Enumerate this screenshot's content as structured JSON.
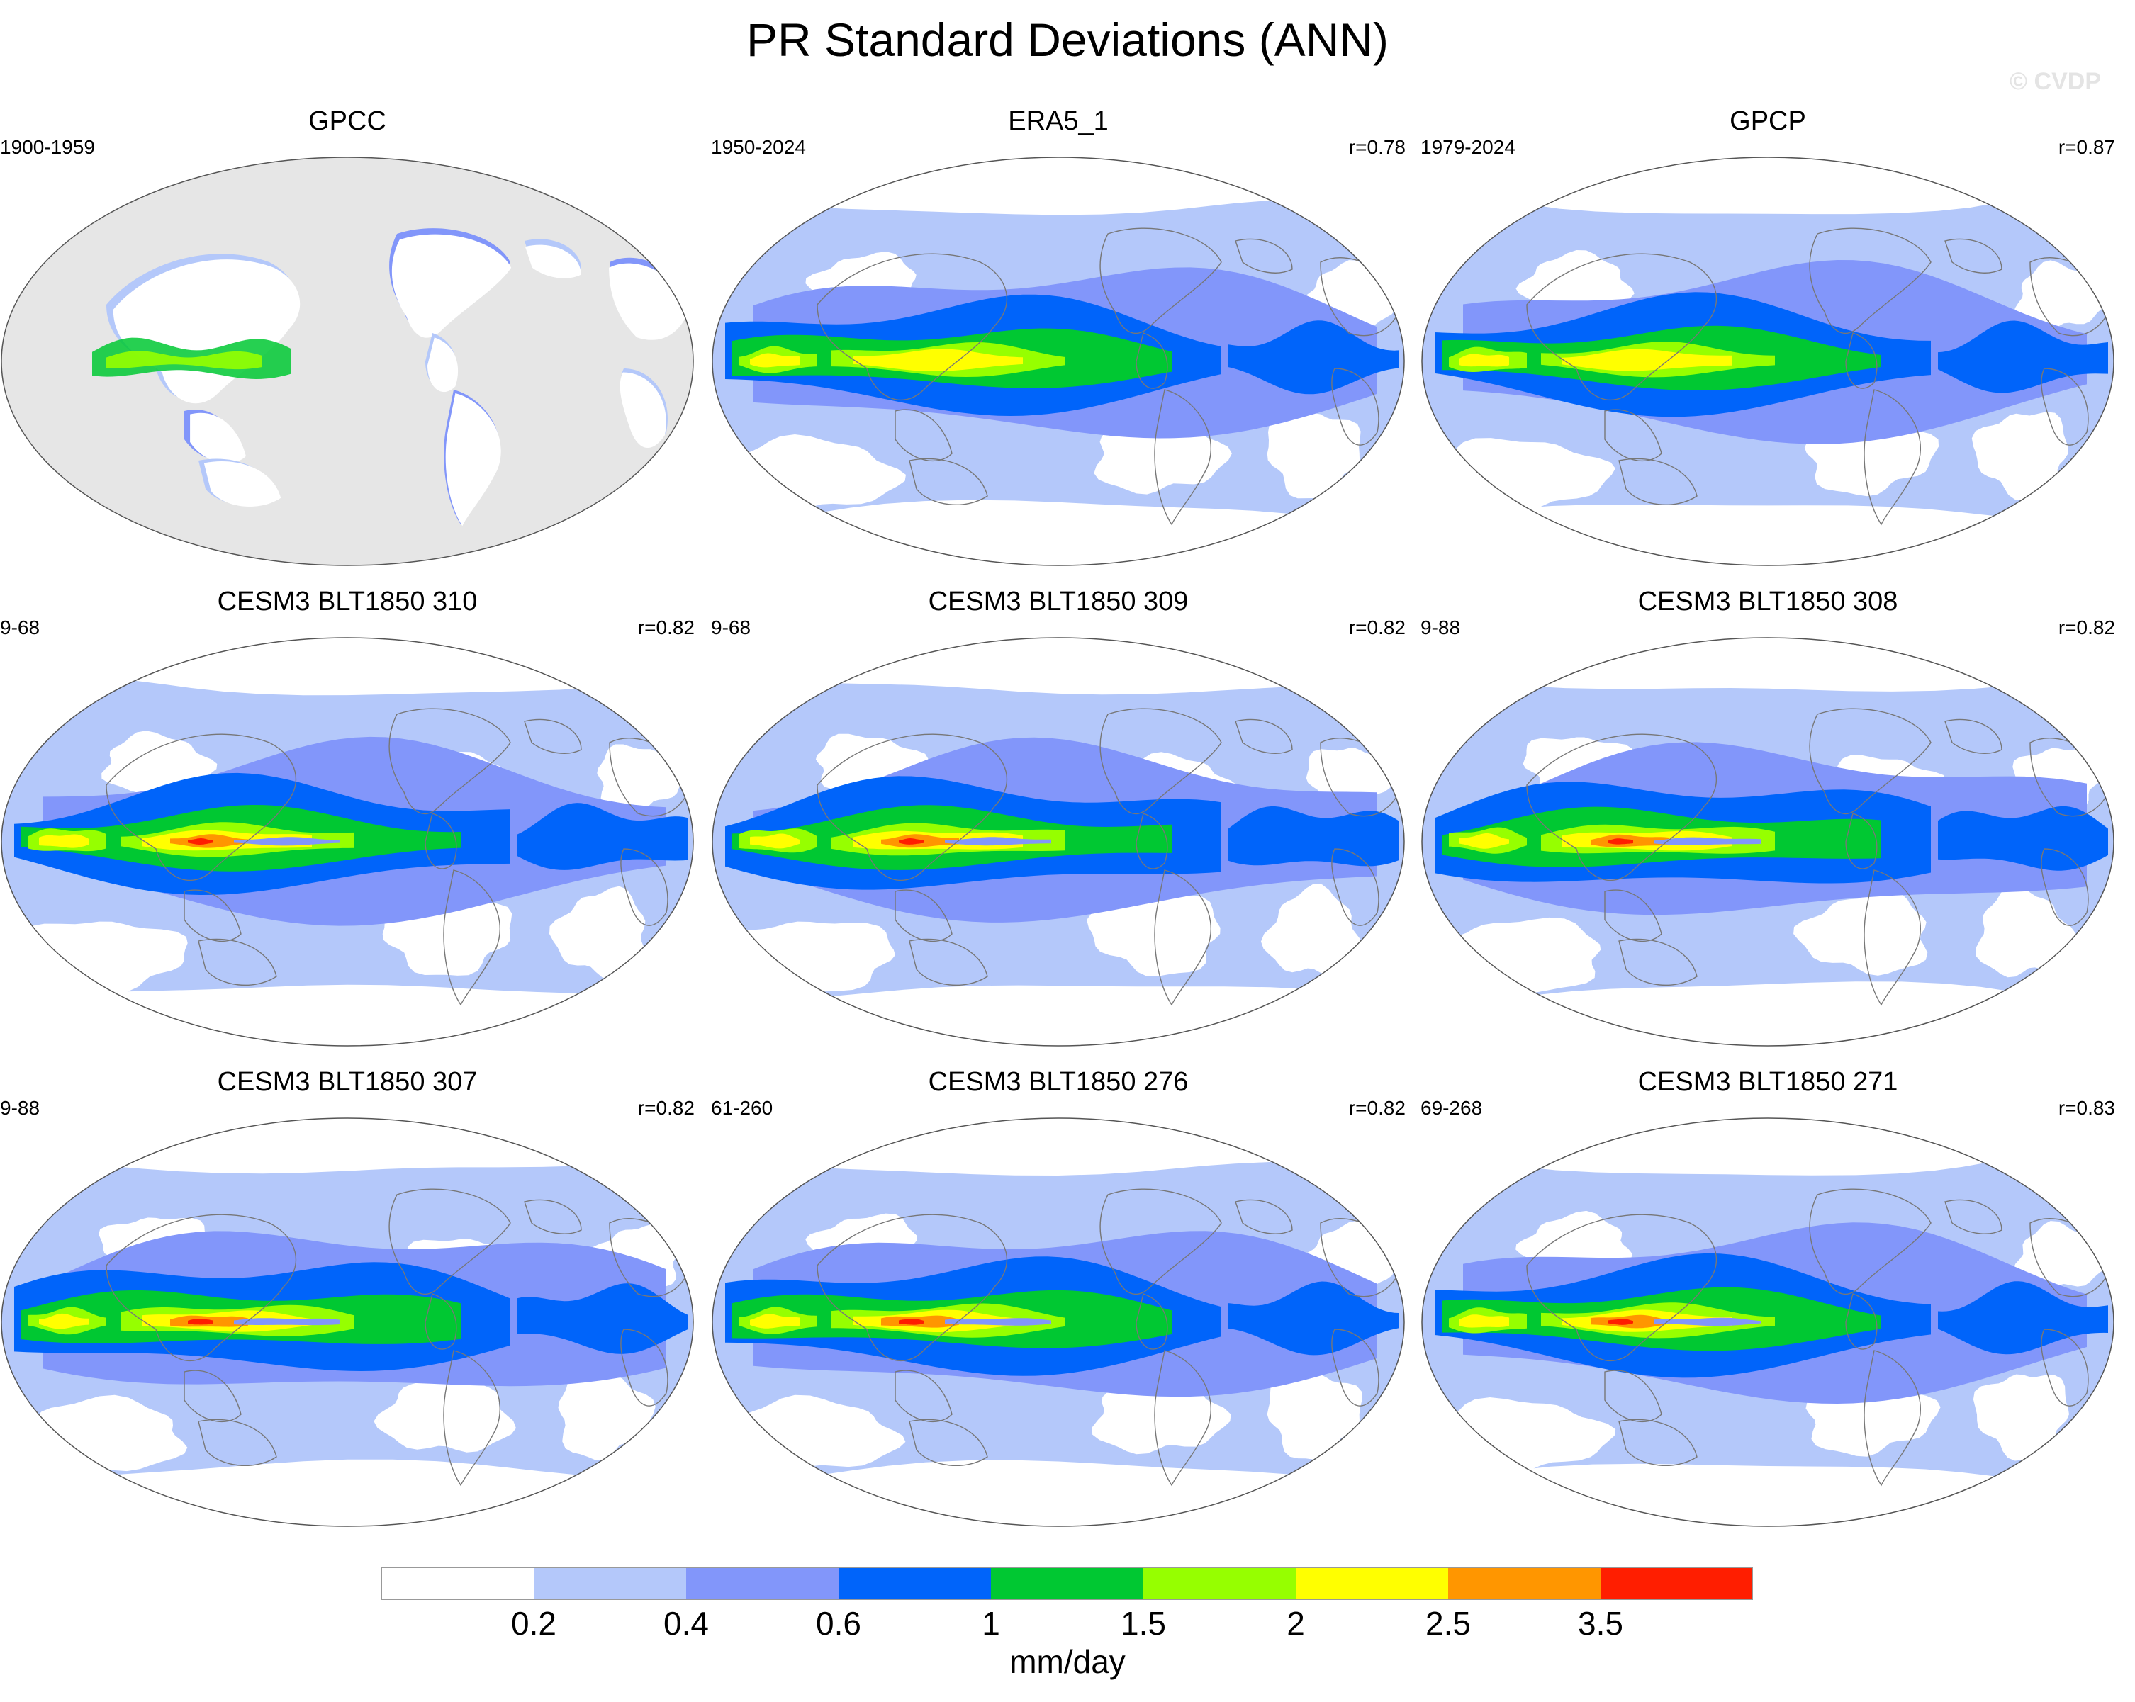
{
  "title": "PR Standard Deviations (ANN)",
  "watermark": "© CVDP",
  "panels": [
    {
      "title": "GPCC",
      "years": "1900-1959",
      "r": "",
      "land_only": true,
      "peak": 2.0
    },
    {
      "title": "ERA5_1",
      "years": "1950-2024",
      "r": "r=0.78",
      "land_only": false,
      "peak": 2.5
    },
    {
      "title": "GPCP",
      "years": "1979-2024",
      "r": "r=0.87",
      "land_only": false,
      "peak": 2.5
    },
    {
      "title": "CESM3 BLT1850 310",
      "years": "9-68",
      "r": "r=0.82",
      "land_only": false,
      "peak": 3.5
    },
    {
      "title": "CESM3 BLT1850 309",
      "years": "9-68",
      "r": "r=0.82",
      "land_only": false,
      "peak": 3.5
    },
    {
      "title": "CESM3 BLT1850 308",
      "years": "9-88",
      "r": "r=0.82",
      "land_only": false,
      "peak": 3.5
    },
    {
      "title": "CESM3 BLT1850 307",
      "years": "9-88",
      "r": "r=0.82",
      "land_only": false,
      "peak": 3.5
    },
    {
      "title": "CESM3 BLT1850 276",
      "years": "61-260",
      "r": "r=0.82",
      "land_only": false,
      "peak": 3.5
    },
    {
      "title": "CESM3 BLT1850 271",
      "years": "69-268",
      "r": "r=0.83",
      "land_only": false,
      "peak": 3.5
    }
  ],
  "colorbar": {
    "colors": [
      "#ffffff",
      "#b4c8fa",
      "#8296fa",
      "#0064fa",
      "#00c832",
      "#96ff00",
      "#ffff00",
      "#ff9600",
      "#ff1e00"
    ],
    "ticks": [
      "0.2",
      "0.4",
      "0.6",
      "1",
      "1.5",
      "2",
      "2.5",
      "3.5"
    ],
    "units": "mm/day"
  },
  "colors": {
    "missing": "#e6e6e6",
    "coast": "#777777"
  }
}
